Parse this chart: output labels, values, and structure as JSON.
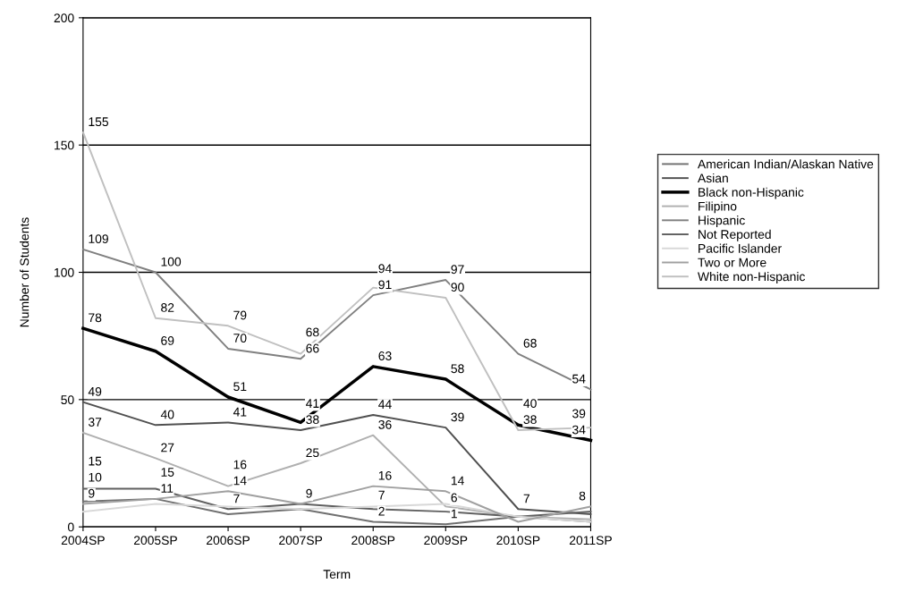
{
  "chart_data": {
    "type": "line",
    "xlabel": "Term",
    "ylabel": "Number of Students",
    "categories": [
      "2004SP",
      "2005SP",
      "2006SP",
      "2007SP",
      "2008SP",
      "2009SP",
      "2010SP",
      "2011SP"
    ],
    "series": [
      {
        "name": "American Indian/Alaskan Native",
        "color": "#707070",
        "values": [
          10,
          11,
          5,
          7,
          2,
          1,
          4,
          2
        ],
        "value_labels": [
          "10",
          null,
          null,
          null,
          "2",
          "1",
          null,
          null
        ]
      },
      {
        "name": "Asian",
        "color": "#505050",
        "values": [
          49,
          40,
          41,
          38,
          44,
          39,
          7,
          5
        ],
        "value_labels": [
          "49",
          "40",
          "41",
          "38",
          "44",
          "39",
          "7",
          null
        ]
      },
      {
        "name": "Black non-Hispanic",
        "color": "#000000",
        "values": [
          78,
          69,
          51,
          41,
          63,
          58,
          40,
          34
        ],
        "value_labels": [
          "78",
          "69",
          "51",
          "41",
          "63",
          "58",
          "40",
          "34"
        ]
      },
      {
        "name": "Filipino",
        "color": "#b0b0b0",
        "values": [
          37,
          27,
          16,
          25,
          36,
          8,
          4,
          3
        ],
        "value_labels": [
          "37",
          "27",
          "16",
          "25",
          "36",
          null,
          null,
          null
        ]
      },
      {
        "name": "Hispanic",
        "color": "#808080",
        "values": [
          109,
          100,
          70,
          66,
          91,
          97,
          68,
          54
        ],
        "value_labels": [
          "109",
          "100",
          "70",
          "66",
          "91",
          "97",
          "68",
          "54"
        ]
      },
      {
        "name": "Not Reported",
        "color": "#606060",
        "values": [
          15,
          15,
          7,
          9,
          7,
          6,
          4,
          6
        ],
        "value_labels": [
          "15",
          "15",
          "7",
          null,
          "7",
          "6",
          null,
          null
        ]
      },
      {
        "name": "Pacific Islander",
        "color": "#d8d8d8",
        "values": [
          6,
          9,
          8,
          7,
          8,
          9,
          4,
          2
        ],
        "value_labels": [
          null,
          null,
          null,
          null,
          null,
          null,
          null,
          null
        ]
      },
      {
        "name": "Two or More",
        "color": "#a0a0a0",
        "values": [
          9,
          11,
          14,
          9,
          16,
          14,
          2,
          8
        ],
        "value_labels": [
          "9",
          "11",
          "14",
          "9",
          "16",
          "14",
          null,
          "8"
        ]
      },
      {
        "name": "White non-Hispanic",
        "color": "#c0c0c0",
        "values": [
          155,
          82,
          79,
          68,
          94,
          90,
          38,
          39
        ],
        "value_labels": [
          "155",
          "82",
          "79",
          "68",
          "94",
          "90",
          "38",
          "39"
        ]
      }
    ],
    "ylim": [
      0,
      200
    ],
    "yticks": [
      0,
      50,
      100,
      150,
      200
    ],
    "grid": "y",
    "legend": "right",
    "marker": "none"
  }
}
